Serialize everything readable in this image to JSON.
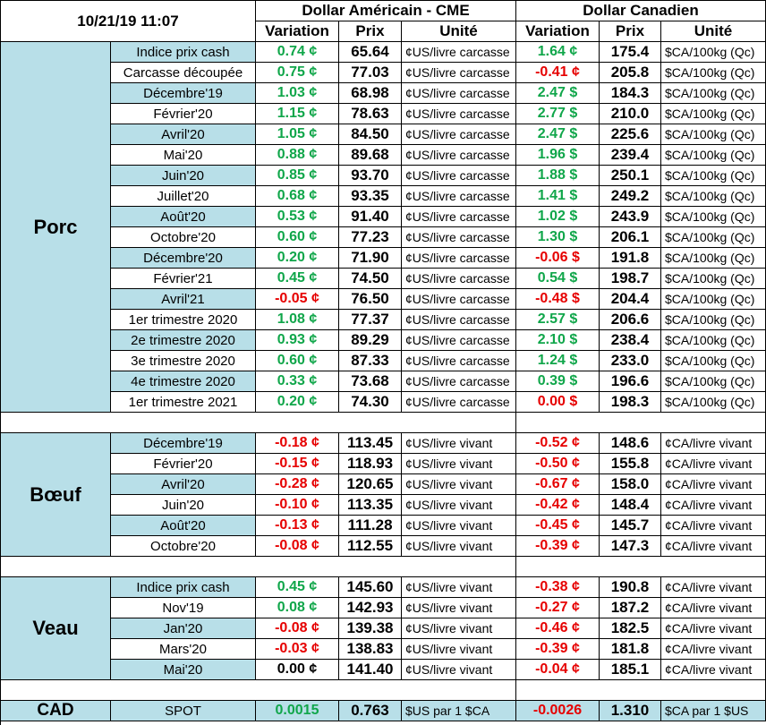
{
  "header": {
    "datetime": "10/21/19 11:07",
    "usd_title": "Dollar Américain - CME",
    "cad_title": "Dollar Canadien",
    "col_variation": "Variation",
    "col_prix": "Prix",
    "col_unite": "Unité"
  },
  "sections": [
    {
      "name": "Porc",
      "rows": [
        {
          "label": "Indice prix cash",
          "us_var": "0.74 ¢",
          "us_dir": "up",
          "us_price": "65.64",
          "us_unit": "¢US/livre carcasse",
          "ca_var": "1.64 ¢",
          "ca_dir": "up",
          "ca_price": "175.4",
          "ca_unit": "$CA/100kg (Qc)"
        },
        {
          "label": "Carcasse découpée",
          "us_var": "0.75 ¢",
          "us_dir": "up",
          "us_price": "77.03",
          "us_unit": "¢US/livre carcasse",
          "ca_var": "-0.41 ¢",
          "ca_dir": "down",
          "ca_price": "205.8",
          "ca_unit": "$CA/100kg (Qc)"
        },
        {
          "label": "Décembre'19",
          "us_var": "1.03 ¢",
          "us_dir": "up",
          "us_price": "68.98",
          "us_unit": "¢US/livre carcasse",
          "ca_var": "2.47 $",
          "ca_dir": "up",
          "ca_price": "184.3",
          "ca_unit": "$CA/100kg (Qc)"
        },
        {
          "label": "Février'20",
          "us_var": "1.15 ¢",
          "us_dir": "up",
          "us_price": "78.63",
          "us_unit": "¢US/livre carcasse",
          "ca_var": "2.77 $",
          "ca_dir": "up",
          "ca_price": "210.0",
          "ca_unit": "$CA/100kg (Qc)"
        },
        {
          "label": "Avril'20",
          "us_var": "1.05 ¢",
          "us_dir": "up",
          "us_price": "84.50",
          "us_unit": "¢US/livre carcasse",
          "ca_var": "2.47 $",
          "ca_dir": "up",
          "ca_price": "225.6",
          "ca_unit": "$CA/100kg (Qc)"
        },
        {
          "label": "Mai'20",
          "us_var": "0.88 ¢",
          "us_dir": "up",
          "us_price": "89.68",
          "us_unit": "¢US/livre carcasse",
          "ca_var": "1.96 $",
          "ca_dir": "up",
          "ca_price": "239.4",
          "ca_unit": "$CA/100kg (Qc)"
        },
        {
          "label": "Juin'20",
          "us_var": "0.85 ¢",
          "us_dir": "up",
          "us_price": "93.70",
          "us_unit": "¢US/livre carcasse",
          "ca_var": "1.88 $",
          "ca_dir": "up",
          "ca_price": "250.1",
          "ca_unit": "$CA/100kg (Qc)"
        },
        {
          "label": "Juillet'20",
          "us_var": "0.68 ¢",
          "us_dir": "up",
          "us_price": "93.35",
          "us_unit": "¢US/livre carcasse",
          "ca_var": "1.41 $",
          "ca_dir": "up",
          "ca_price": "249.2",
          "ca_unit": "$CA/100kg (Qc)"
        },
        {
          "label": "Août'20",
          "us_var": "0.53 ¢",
          "us_dir": "up",
          "us_price": "91.40",
          "us_unit": "¢US/livre carcasse",
          "ca_var": "1.02 $",
          "ca_dir": "up",
          "ca_price": "243.9",
          "ca_unit": "$CA/100kg (Qc)"
        },
        {
          "label": "Octobre'20",
          "us_var": "0.60 ¢",
          "us_dir": "up",
          "us_price": "77.23",
          "us_unit": "¢US/livre carcasse",
          "ca_var": "1.30 $",
          "ca_dir": "up",
          "ca_price": "206.1",
          "ca_unit": "$CA/100kg (Qc)"
        },
        {
          "label": "Décembre'20",
          "us_var": "0.20 ¢",
          "us_dir": "up",
          "us_price": "71.90",
          "us_unit": "¢US/livre carcasse",
          "ca_var": "-0.06 $",
          "ca_dir": "down",
          "ca_price": "191.8",
          "ca_unit": "$CA/100kg (Qc)"
        },
        {
          "label": "Février'21",
          "us_var": "0.45 ¢",
          "us_dir": "up",
          "us_price": "74.50",
          "us_unit": "¢US/livre carcasse",
          "ca_var": "0.54 $",
          "ca_dir": "up",
          "ca_price": "198.7",
          "ca_unit": "$CA/100kg (Qc)"
        },
        {
          "label": "Avril'21",
          "us_var": "-0.05 ¢",
          "us_dir": "down",
          "us_price": "76.50",
          "us_unit": "¢US/livre carcasse",
          "ca_var": "-0.48 $",
          "ca_dir": "down",
          "ca_price": "204.4",
          "ca_unit": "$CA/100kg (Qc)"
        },
        {
          "label": "1er trimestre 2020",
          "us_var": "1.08 ¢",
          "us_dir": "up",
          "us_price": "77.37",
          "us_unit": "¢US/livre carcasse",
          "ca_var": "2.57 $",
          "ca_dir": "up",
          "ca_price": "206.6",
          "ca_unit": "$CA/100kg (Qc)"
        },
        {
          "label": "2e trimestre 2020",
          "us_var": "0.93 ¢",
          "us_dir": "up",
          "us_price": "89.29",
          "us_unit": "¢US/livre carcasse",
          "ca_var": "2.10 $",
          "ca_dir": "up",
          "ca_price": "238.4",
          "ca_unit": "$CA/100kg (Qc)"
        },
        {
          "label": "3e trimestre 2020",
          "us_var": "0.60 ¢",
          "us_dir": "up",
          "us_price": "87.33",
          "us_unit": "¢US/livre carcasse",
          "ca_var": "1.24 $",
          "ca_dir": "up",
          "ca_price": "233.0",
          "ca_unit": "$CA/100kg (Qc)"
        },
        {
          "label": "4e trimestre 2020",
          "us_var": "0.33 ¢",
          "us_dir": "up",
          "us_price": "73.68",
          "us_unit": "¢US/livre carcasse",
          "ca_var": "0.39 $",
          "ca_dir": "up",
          "ca_price": "196.6",
          "ca_unit": "$CA/100kg (Qc)"
        },
        {
          "label": "1er trimestre 2021",
          "us_var": "0.20 ¢",
          "us_dir": "up",
          "us_price": "74.30",
          "us_unit": "¢US/livre carcasse",
          "ca_var": "0.00 $",
          "ca_dir": "down",
          "ca_price": "198.3",
          "ca_unit": "$CA/100kg (Qc)"
        }
      ]
    },
    {
      "name": "Bœuf",
      "rows": [
        {
          "label": "Décembre'19",
          "us_var": "-0.18 ¢",
          "us_dir": "down",
          "us_price": "113.45",
          "us_unit": "¢US/livre vivant",
          "ca_var": "-0.52 ¢",
          "ca_dir": "down",
          "ca_price": "148.6",
          "ca_unit": "¢CA/livre vivant"
        },
        {
          "label": "Février'20",
          "us_var": "-0.15 ¢",
          "us_dir": "down",
          "us_price": "118.93",
          "us_unit": "¢US/livre vivant",
          "ca_var": "-0.50 ¢",
          "ca_dir": "down",
          "ca_price": "155.8",
          "ca_unit": "¢CA/livre vivant"
        },
        {
          "label": "Avril'20",
          "us_var": "-0.28 ¢",
          "us_dir": "down",
          "us_price": "120.65",
          "us_unit": "¢US/livre vivant",
          "ca_var": "-0.67 ¢",
          "ca_dir": "down",
          "ca_price": "158.0",
          "ca_unit": "¢CA/livre vivant"
        },
        {
          "label": "Juin'20",
          "us_var": "-0.10 ¢",
          "us_dir": "down",
          "us_price": "113.35",
          "us_unit": "¢US/livre vivant",
          "ca_var": "-0.42 ¢",
          "ca_dir": "down",
          "ca_price": "148.4",
          "ca_unit": "¢CA/livre vivant"
        },
        {
          "label": "Août'20",
          "us_var": "-0.13 ¢",
          "us_dir": "down",
          "us_price": "111.28",
          "us_unit": "¢US/livre vivant",
          "ca_var": "-0.45 ¢",
          "ca_dir": "down",
          "ca_price": "145.7",
          "ca_unit": "¢CA/livre vivant"
        },
        {
          "label": "Octobre'20",
          "us_var": "-0.08 ¢",
          "us_dir": "down",
          "us_price": "112.55",
          "us_unit": "¢US/livre vivant",
          "ca_var": "-0.39 ¢",
          "ca_dir": "down",
          "ca_price": "147.3",
          "ca_unit": "¢CA/livre vivant"
        }
      ]
    },
    {
      "name": "Veau",
      "rows": [
        {
          "label": "Indice prix cash",
          "us_var": "0.45 ¢",
          "us_dir": "up",
          "us_price": "145.60",
          "us_unit": "¢US/livre vivant",
          "ca_var": "-0.38 ¢",
          "ca_dir": "down",
          "ca_price": "190.8",
          "ca_unit": "¢CA/livre vivant"
        },
        {
          "label": "Nov'19",
          "us_var": "0.08 ¢",
          "us_dir": "up",
          "us_price": "142.93",
          "us_unit": "¢US/livre vivant",
          "ca_var": "-0.27 ¢",
          "ca_dir": "down",
          "ca_price": "187.2",
          "ca_unit": "¢CA/livre vivant"
        },
        {
          "label": "Jan'20",
          "us_var": "-0.08 ¢",
          "us_dir": "down",
          "us_price": "139.38",
          "us_unit": "¢US/livre vivant",
          "ca_var": "-0.46 ¢",
          "ca_dir": "down",
          "ca_price": "182.5",
          "ca_unit": "¢CA/livre vivant"
        },
        {
          "label": "Mars'20",
          "us_var": "-0.03 ¢",
          "us_dir": "down",
          "us_price": "138.83",
          "us_unit": "¢US/livre vivant",
          "ca_var": "-0.39 ¢",
          "ca_dir": "down",
          "ca_price": "181.8",
          "ca_unit": "¢CA/livre vivant"
        },
        {
          "label": "Mai'20",
          "us_var": "0.00 ¢",
          "us_dir": "zero",
          "us_price": "141.40",
          "us_unit": "¢US/livre vivant",
          "ca_var": "-0.04 ¢",
          "ca_dir": "down",
          "ca_price": "185.1",
          "ca_unit": "¢CA/livre vivant"
        }
      ]
    }
  ],
  "spot": {
    "name": "CAD",
    "label": "SPOT",
    "us_var": "0.0015",
    "us_dir": "up",
    "us_price": "0.763",
    "us_unit": "$US par 1 $CA",
    "ca_var": "-0.0026",
    "ca_dir": "down",
    "ca_price": "1.310",
    "ca_unit": "$CA par 1 $US"
  },
  "colors": {
    "stripe": "#b8dfe8",
    "up": "#10a64a",
    "down": "#e60000"
  }
}
